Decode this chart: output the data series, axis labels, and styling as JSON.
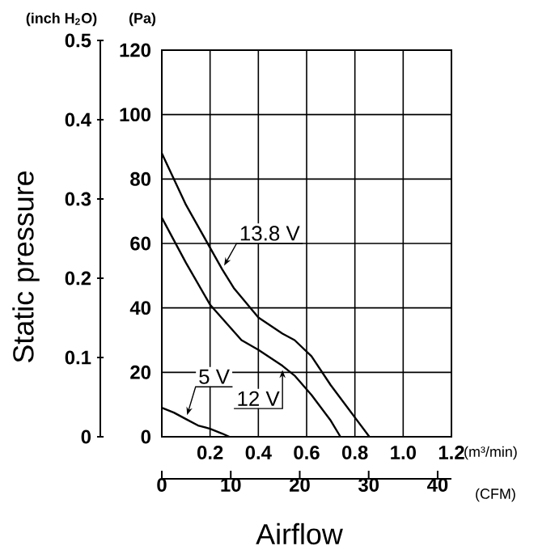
{
  "chart_data": {
    "type": "line",
    "xlabel": "(m³/min)",
    "x2label": "(CFM)",
    "ylabel": "(Pa)",
    "y2label": "(inch H$_{2}$O)",
    "annotations": [
      "Static pressure",
      "Airflow"
    ],
    "xlim": [
      0,
      1.2
    ],
    "xticks": [
      {
        "value": 0,
        "label": null
      },
      0.2,
      0.4,
      0.6,
      0.8,
      {
        "value": 1,
        "label": "1.0"
      },
      1.2
    ],
    "x2lim": [
      0,
      42
    ],
    "x2ticks": [
      0,
      10,
      20,
      30,
      40
    ],
    "ylim": [
      0,
      120
    ],
    "yticks": [
      0,
      20,
      40,
      60,
      80,
      100,
      120
    ],
    "y2lim": [
      0,
      0.5
    ],
    "y2ticks": [
      0,
      0.1,
      0.2,
      0.3,
      0.4,
      0.5
    ],
    "grid": true,
    "series": [
      {
        "name": "13.8 V",
        "color": "#000000",
        "x": [
          0,
          0.1,
          0.25,
          0.3,
          0.4,
          0.5,
          0.55,
          0.62,
          0.7,
          0.8,
          0.86
        ],
        "values": [
          88,
          72,
          52,
          46,
          37,
          32,
          30,
          25,
          16,
          6,
          0
        ]
      },
      {
        "name": "12 V",
        "color": "#000000",
        "x": [
          0,
          0.1,
          0.2,
          0.33,
          0.4,
          0.5,
          0.55,
          0.62,
          0.7,
          0.74
        ],
        "values": [
          68,
          54,
          41,
          30,
          27,
          22,
          19,
          13,
          5,
          0
        ]
      },
      {
        "name": "5 V",
        "color": "#000000",
        "x": [
          0,
          0.05,
          0.1,
          0.15,
          0.2,
          0.25,
          0.28
        ],
        "values": [
          9,
          7.5,
          5.5,
          3.5,
          2.5,
          1,
          0
        ]
      }
    ]
  }
}
